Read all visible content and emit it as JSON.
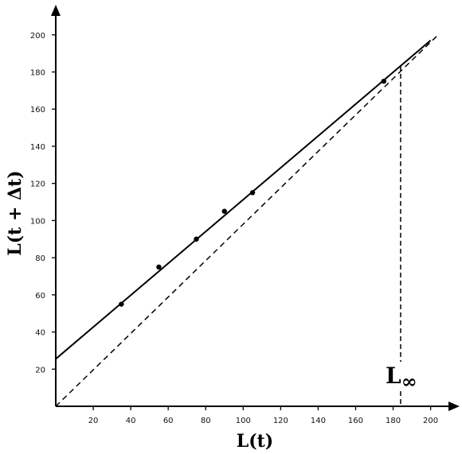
{
  "chart_data": {
    "type": "line",
    "title": "",
    "xlabel": "L(t)",
    "ylabel": "L(t + Δt)",
    "xlim": [
      0,
      210
    ],
    "ylim": [
      0,
      210
    ],
    "x_ticks": [
      20,
      40,
      60,
      80,
      100,
      120,
      140,
      160,
      180,
      200
    ],
    "y_ticks": [
      20,
      40,
      60,
      80,
      100,
      120,
      140,
      160,
      180,
      200
    ],
    "x_tick_labels": [
      "20",
      "40",
      "60",
      "80",
      "100",
      "120",
      "140",
      "160",
      "180",
      "200"
    ],
    "y_tick_labels": [
      "20",
      "40",
      "60",
      "80",
      "100",
      "120",
      "140",
      "160",
      "180",
      "200"
    ],
    "grid": false,
    "series": [
      {
        "kind": "scatter",
        "x": [
          35,
          55,
          75,
          90,
          105,
          175
        ],
        "y": [
          55,
          75,
          90,
          105,
          115,
          175
        ]
      },
      {
        "kind": "line",
        "style": "solid",
        "x": [
          0,
          200
        ],
        "y": [
          25.5,
          197
        ]
      },
      {
        "kind": "line",
        "style": "dashed",
        "x": [
          0,
          204
        ],
        "y": [
          0,
          200
        ]
      }
    ],
    "annotations": [
      {
        "text": "L∞",
        "x": 184,
        "style": "dashed-vertical"
      }
    ]
  }
}
